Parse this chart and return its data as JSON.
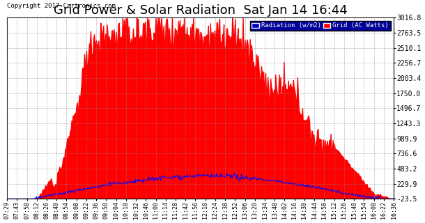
{
  "title": "Grid Power & Solar Radiation  Sat Jan 14 16:44",
  "copyright": "Copyright 2017 Cartronics.com",
  "legend_labels": [
    "Radiation (w/m2)",
    "Grid (AC Watts)"
  ],
  "legend_colors": [
    "#0000ff",
    "#ff0000"
  ],
  "yticks": [
    -23.5,
    229.9,
    483.2,
    736.6,
    989.9,
    1243.3,
    1496.7,
    1750.0,
    2003.4,
    2256.7,
    2510.1,
    2763.5,
    3016.8
  ],
  "ylim": [
    -23.5,
    3016.8
  ],
  "background_color": "#ffffff",
  "grid_color": "#888888",
  "title_fontsize": 13,
  "xtick_labels": [
    "07:29",
    "07:43",
    "07:58",
    "08:12",
    "08:26",
    "08:40",
    "08:54",
    "09:08",
    "09:22",
    "09:36",
    "09:50",
    "10:04",
    "10:18",
    "10:32",
    "10:46",
    "11:00",
    "11:14",
    "11:28",
    "11:42",
    "11:56",
    "12:10",
    "12:24",
    "12:38",
    "12:52",
    "13:06",
    "13:20",
    "13:34",
    "13:48",
    "14:02",
    "14:16",
    "14:30",
    "14:44",
    "14:58",
    "15:12",
    "15:26",
    "15:40",
    "15:54",
    "16:08",
    "16:22",
    "16:36"
  ],
  "n_xticks": 40
}
